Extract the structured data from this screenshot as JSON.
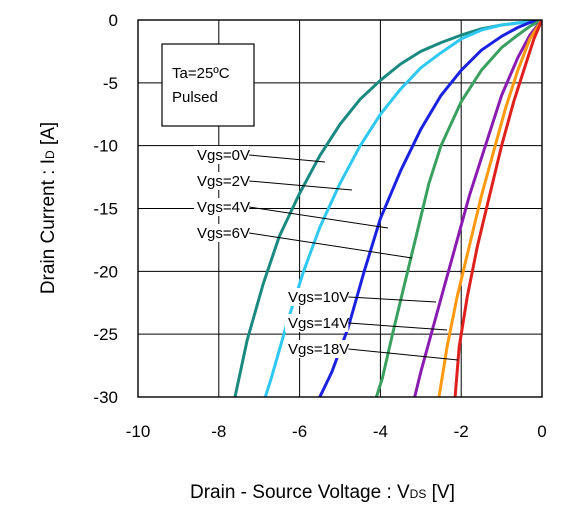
{
  "chart_data": {
    "type": "line",
    "xlabel": "Drain - Source Voltage : V",
    "xlabel_sub": "DS",
    "xlabel_unit": " [V]",
    "ylabel": "Drain Current : I",
    "ylabel_sub": "D",
    "ylabel_unit": " [A]",
    "xlim": [
      -10,
      0
    ],
    "ylim": [
      -30,
      0
    ],
    "xticks": [
      "-10",
      "-8",
      "-6",
      "-4",
      "-2",
      "0"
    ],
    "yticks": [
      "0",
      "-5",
      "-10",
      "-15",
      "-20",
      "-25",
      "-30"
    ],
    "grid": true,
    "annotation": {
      "line1": "Ta=25ºC",
      "line2": "Pulsed"
    },
    "series": [
      {
        "name": "Vgs=0V",
        "color": "#1a8a80",
        "points": [
          [
            0,
            0
          ],
          [
            -0.5,
            -0.2
          ],
          [
            -1,
            -0.4
          ],
          [
            -1.5,
            -0.7
          ],
          [
            -2,
            -1.2
          ],
          [
            -2.5,
            -1.8
          ],
          [
            -3,
            -2.5
          ],
          [
            -3.5,
            -3.5
          ],
          [
            -4,
            -4.8
          ],
          [
            -4.5,
            -6.3
          ],
          [
            -5,
            -8.3
          ],
          [
            -5.5,
            -10.8
          ],
          [
            -6,
            -13.8
          ],
          [
            -6.5,
            -17.2
          ],
          [
            -6.9,
            -21
          ],
          [
            -7.3,
            -25.5
          ],
          [
            -7.6,
            -30
          ]
        ]
      },
      {
        "name": "Vgs=2V",
        "color": "#2fc8f0",
        "points": [
          [
            0,
            0
          ],
          [
            -0.5,
            -0.2
          ],
          [
            -1,
            -0.4
          ],
          [
            -1.5,
            -0.8
          ],
          [
            -2,
            -1.5
          ],
          [
            -2.5,
            -2.6
          ],
          [
            -3,
            -3.8
          ],
          [
            -3.5,
            -5.5
          ],
          [
            -4,
            -7.5
          ],
          [
            -4.5,
            -10
          ],
          [
            -5,
            -13
          ],
          [
            -5.5,
            -16.5
          ],
          [
            -5.9,
            -20
          ],
          [
            -6.3,
            -24
          ],
          [
            -6.7,
            -28.5
          ],
          [
            -6.85,
            -30
          ]
        ]
      },
      {
        "name": "Vgs=4V",
        "color": "#1a22e0",
        "points": [
          [
            0,
            0
          ],
          [
            -0.3,
            -0.2
          ],
          [
            -0.6,
            -0.6
          ],
          [
            -1,
            -1.3
          ],
          [
            -1.5,
            -2.4
          ],
          [
            -2,
            -4
          ],
          [
            -2.5,
            -6
          ],
          [
            -3,
            -8.7
          ],
          [
            -3.5,
            -12
          ],
          [
            -4,
            -15.8
          ],
          [
            -4.4,
            -20
          ],
          [
            -4.8,
            -24.5
          ],
          [
            -5.2,
            -28
          ],
          [
            -5.5,
            -30
          ]
        ]
      },
      {
        "name": "Vgs=6V",
        "color": "#3aa060",
        "points": [
          [
            0,
            0
          ],
          [
            -0.3,
            -0.5
          ],
          [
            -0.6,
            -1.2
          ],
          [
            -1,
            -2.2
          ],
          [
            -1.5,
            -4
          ],
          [
            -2,
            -6.5
          ],
          [
            -2.5,
            -10
          ],
          [
            -2.8,
            -13
          ],
          [
            -3.1,
            -17
          ],
          [
            -3.4,
            -21
          ],
          [
            -3.7,
            -25
          ],
          [
            -3.95,
            -28.5
          ],
          [
            -4.1,
            -30
          ]
        ]
      },
      {
        "name": "Vgs=10V",
        "color": "#8a1cb0",
        "points": [
          [
            0,
            0
          ],
          [
            -0.3,
            -1.2
          ],
          [
            -0.6,
            -3
          ],
          [
            -1,
            -6
          ],
          [
            -1.4,
            -10
          ],
          [
            -1.8,
            -14
          ],
          [
            -2.1,
            -17.5
          ],
          [
            -2.4,
            -21
          ],
          [
            -2.7,
            -24.5
          ],
          [
            -3,
            -28
          ],
          [
            -3.15,
            -30
          ]
        ]
      },
      {
        "name": "Vgs=14V",
        "color": "#ff9a10",
        "points": [
          [
            0,
            0
          ],
          [
            -0.3,
            -1.5
          ],
          [
            -0.6,
            -4
          ],
          [
            -0.9,
            -7
          ],
          [
            -1.2,
            -10.5
          ],
          [
            -1.5,
            -14
          ],
          [
            -1.8,
            -18
          ],
          [
            -2.1,
            -22
          ],
          [
            -2.35,
            -26
          ],
          [
            -2.55,
            -30
          ]
        ]
      },
      {
        "name": "Vgs=18V",
        "color": "#e0201c",
        "points": [
          [
            0,
            0
          ],
          [
            -0.2,
            -1.5
          ],
          [
            -0.4,
            -3.5
          ],
          [
            -0.7,
            -6.5
          ],
          [
            -1,
            -10
          ],
          [
            -1.3,
            -14
          ],
          [
            -1.6,
            -18
          ],
          [
            -1.85,
            -22
          ],
          [
            -2.05,
            -26
          ],
          [
            -2.15,
            -30
          ]
        ]
      }
    ]
  }
}
